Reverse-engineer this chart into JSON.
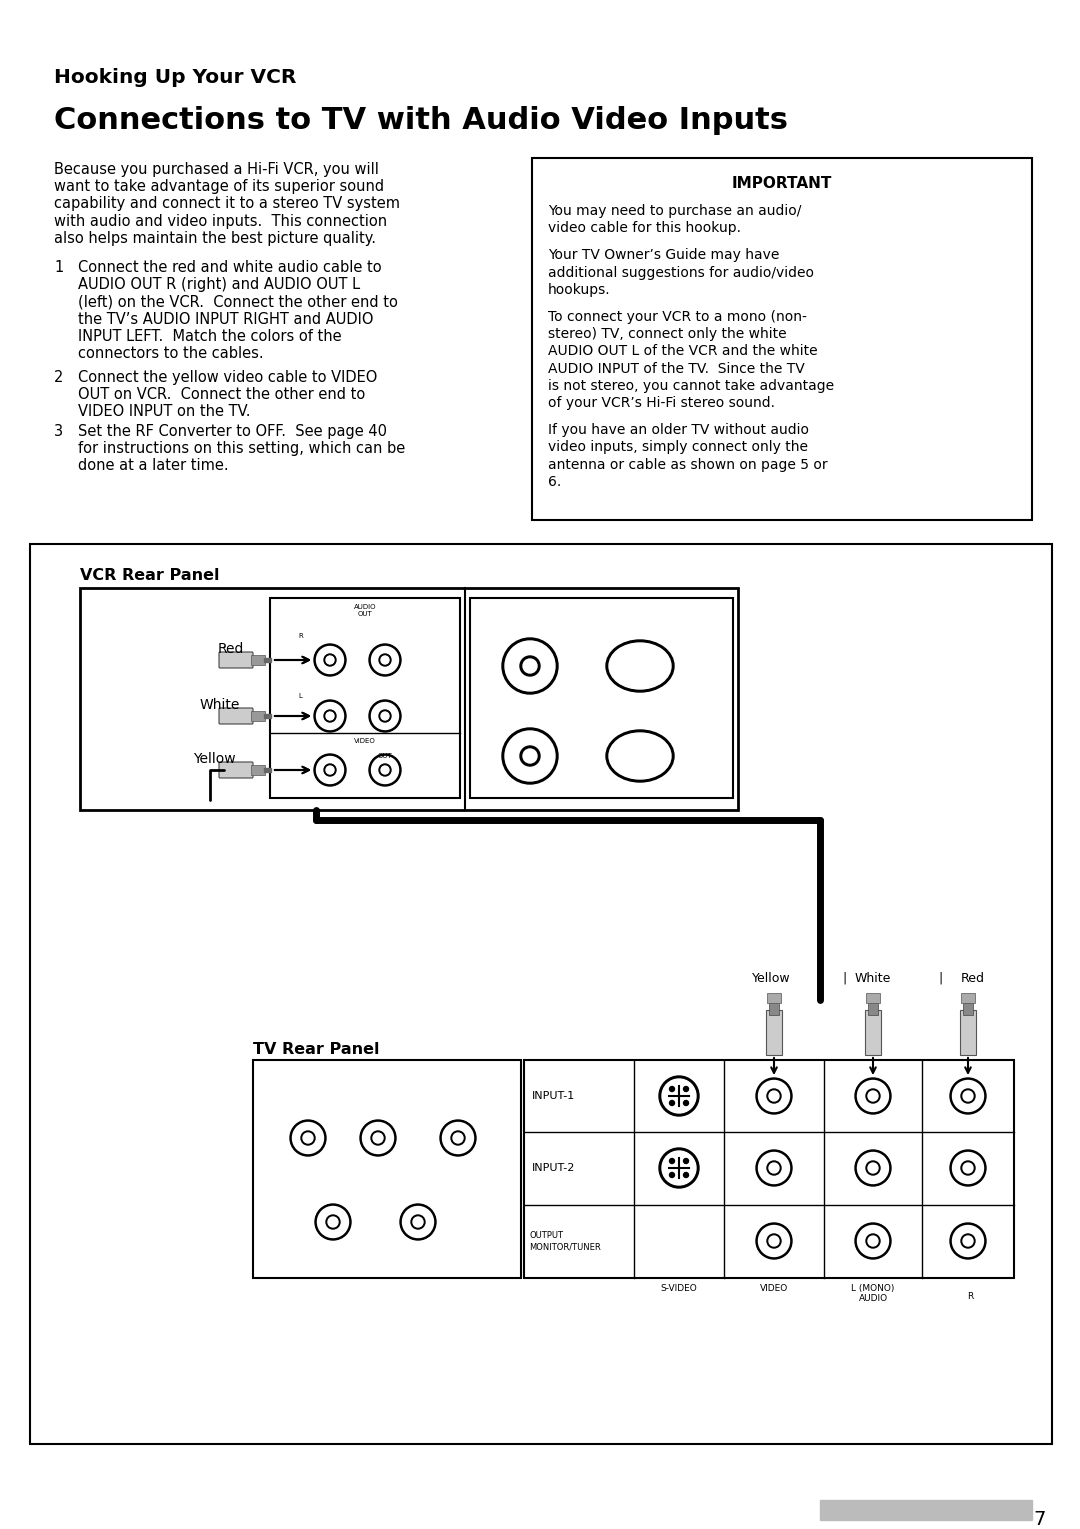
{
  "page_bg": "#ffffff",
  "page_num": "7",
  "section_title": "Hooking Up Your VCR",
  "main_title": "Connections to TV with Audio Video Inputs",
  "left_para_lines": [
    "Because you purchased a Hi-Fi VCR, you will",
    "want to take advantage of its superior sound",
    "capability and connect it to a stereo TV system",
    "with audio and video inputs.  This connection",
    "also helps maintain the best picture quality."
  ],
  "step1_lines": [
    "Connect the red and white audio cable to",
    "AUDIO OUT R (right) and AUDIO OUT L",
    "(left) on the VCR.  Connect the other end to",
    "the TV’s AUDIO INPUT RIGHT and AUDIO",
    "INPUT LEFT.  Match the colors of the",
    "connectors to the cables."
  ],
  "step2_lines": [
    "Connect the yellow video cable to VIDEO",
    "OUT on VCR.  Connect the other end to",
    "VIDEO INPUT on the TV."
  ],
  "step3_lines": [
    "Set the RF Converter to OFF.  See page 40",
    "for instructions on this setting, which can be",
    "done at a later time."
  ],
  "important_title": "IMPORTANT",
  "imp_para1_lines": [
    "You may need to purchase an audio/",
    "video cable for this hookup."
  ],
  "imp_para2_lines": [
    "Your TV Owner’s Guide may have",
    "additional suggestions for audio/video",
    "hookups."
  ],
  "imp_para3_lines": [
    "To connect your VCR to a mono (non-",
    "stereo) TV, connect only the white",
    "AUDIO OUT L of the VCR and the white",
    "AUDIO INPUT of the TV.  Since the TV",
    "is not stereo, you cannot take advantage",
    "of your VCR’s Hi-Fi stereo sound."
  ],
  "imp_para4_lines": [
    "If you have an older TV without audio",
    "video inputs, simply connect only the",
    "antenna or cable as shown on page 5 or",
    "6."
  ],
  "diagram_label_vcr": "VCR Rear Panel",
  "diagram_label_tv": "TV Rear Panel",
  "vcr_labels": [
    "Red",
    "White",
    "Yellow"
  ],
  "tv_labels": [
    "Yellow",
    "White",
    "Red"
  ],
  "text_color": "#000000",
  "gray_color": "#aaaaaa"
}
